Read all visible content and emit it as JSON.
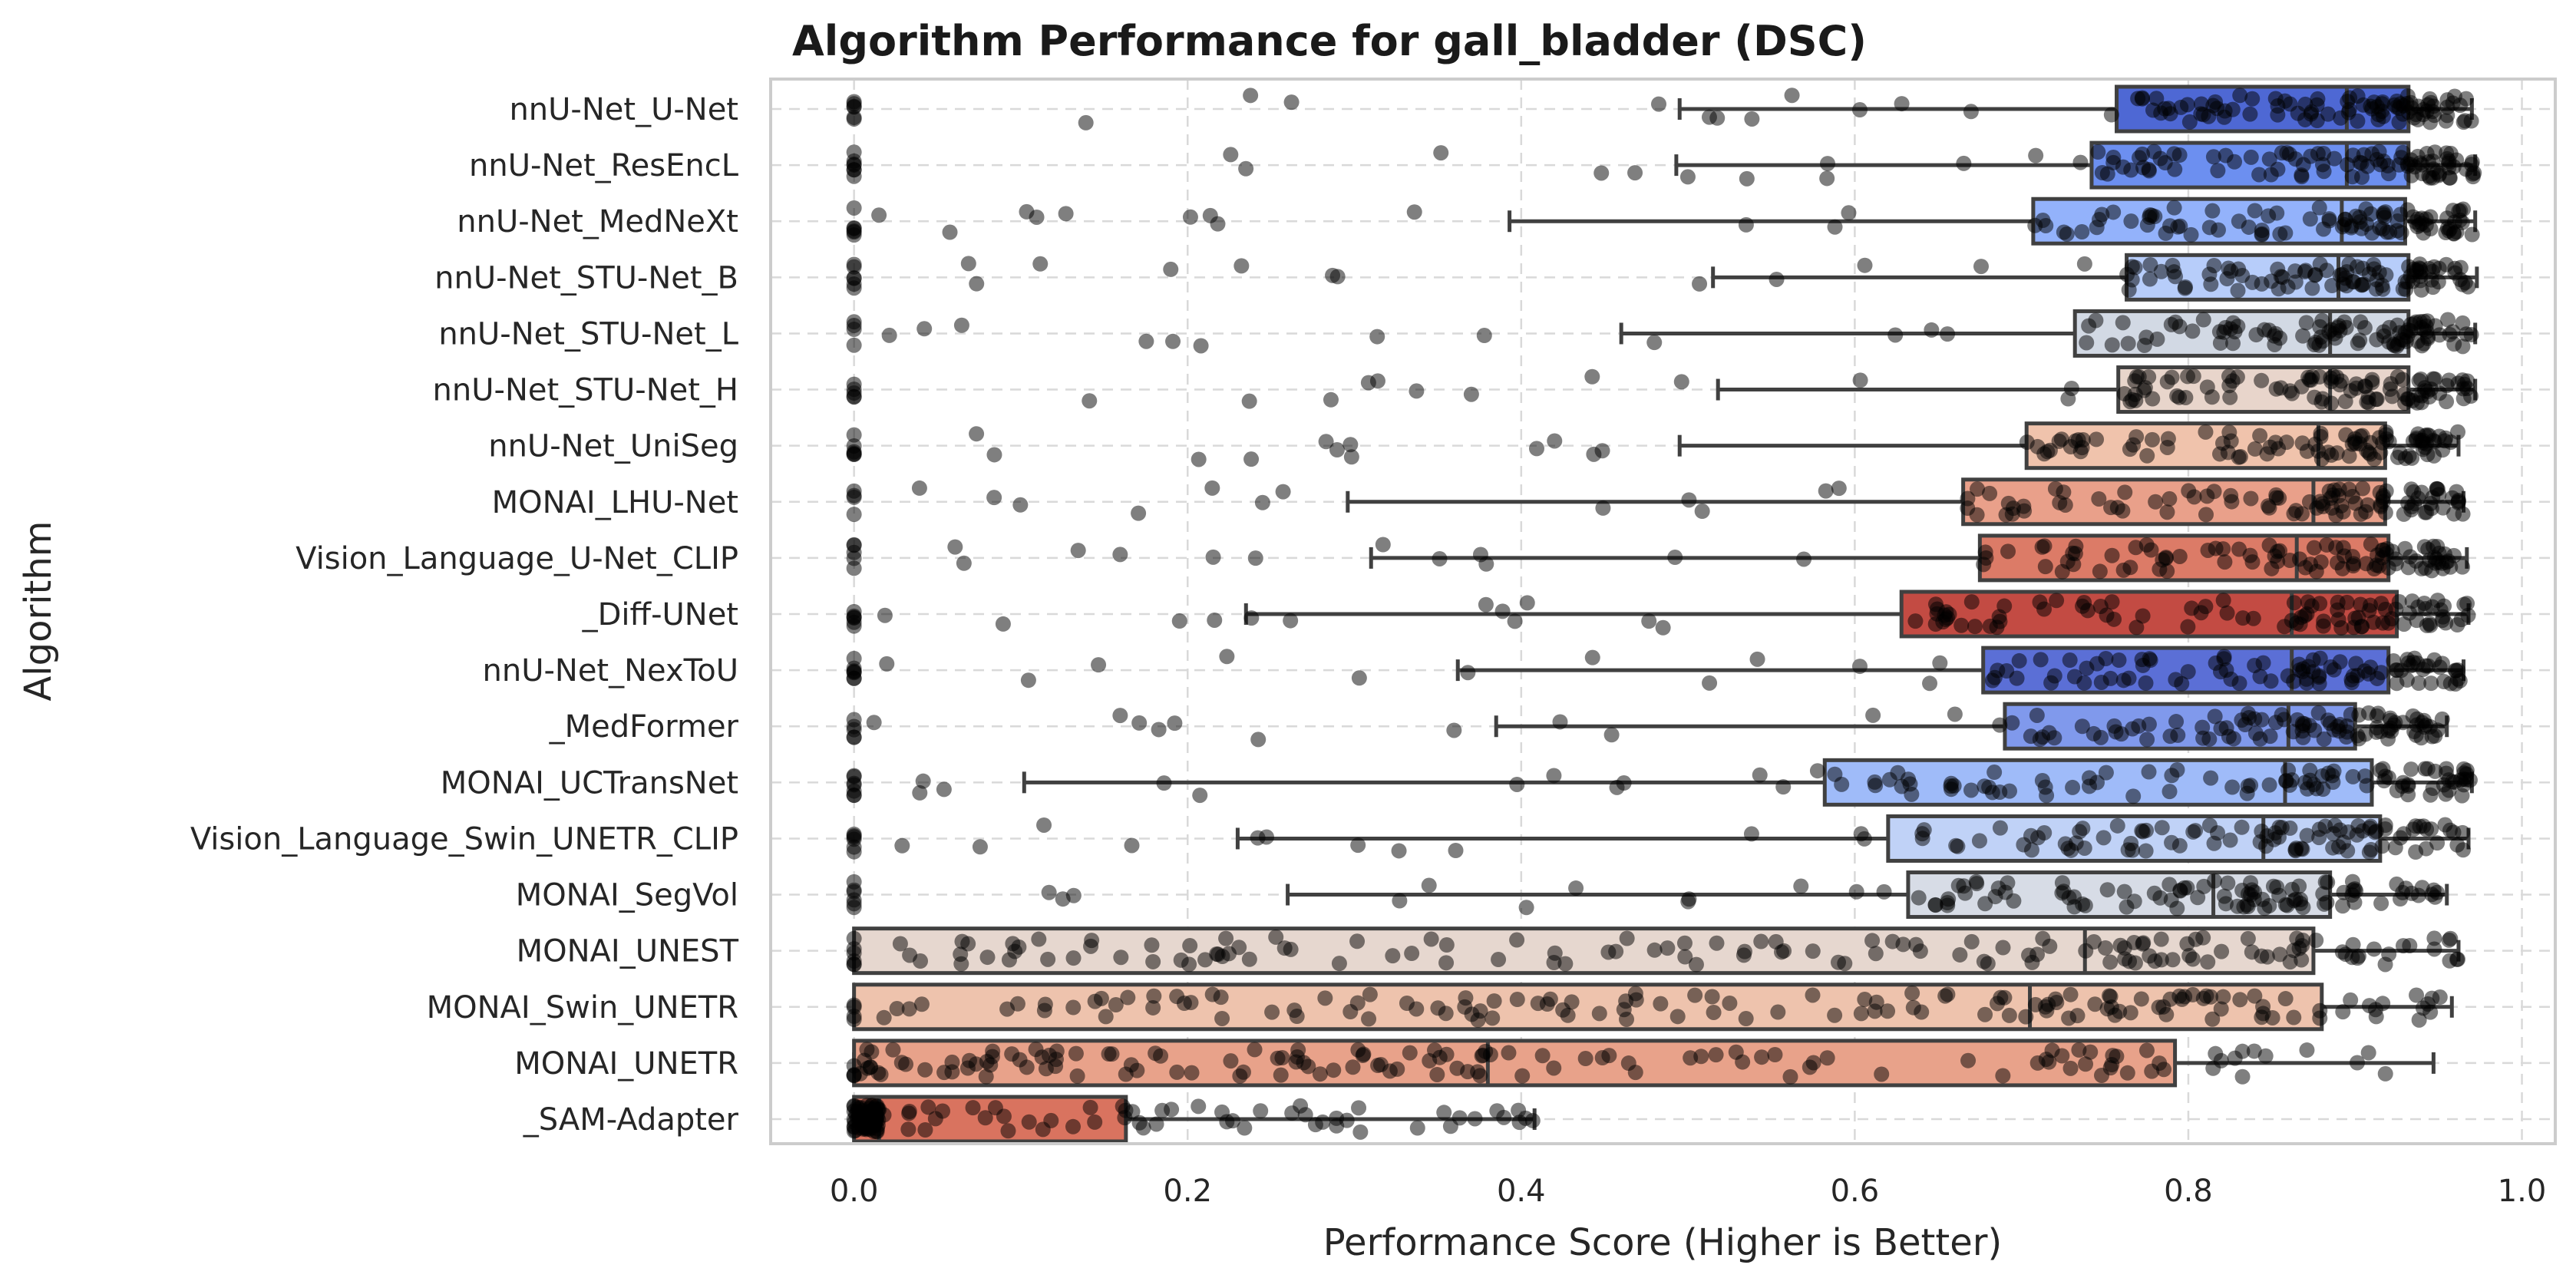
{
  "chart_data": {
    "type": "box",
    "title": "Algorithm Performance for gall_bladder (DSC)",
    "xlabel": "Performance Score (Higher is Better)",
    "ylabel": "Algorithm",
    "xlim": [
      -0.05,
      1.02
    ],
    "xticks": [
      "0.0",
      "0.2",
      "0.4",
      "0.6",
      "0.8",
      "1.0"
    ],
    "xtick_values": [
      0.0,
      0.2,
      0.4,
      0.6,
      0.8,
      1.0
    ],
    "grid": true,
    "orientation": "horizontal",
    "palette": "coolwarm",
    "categories": [
      "nnU-Net_U-Net",
      "nnU-Net_ResEncL",
      "nnU-Net_MedNeXt",
      "nnU-Net_STU-Net_B",
      "nnU-Net_STU-Net_L",
      "nnU-Net_STU-Net_H",
      "nnU-Net_UniSeg",
      "MONAI_LHU-Net",
      "Vision_Language_U-Net_CLIP",
      "_Diff-UNet",
      "nnU-Net_NexToU",
      "_MedFormer",
      "MONAI_UCTransNet",
      "Vision_Language_Swin_UNETR_CLIP",
      "MONAI_SegVol",
      "MONAI_UNEST",
      "MONAI_Swin_UNETR",
      "MONAI_UNETR",
      "_SAM-Adapter"
    ],
    "boxes": [
      {
        "whislo": 0.495,
        "q1": 0.757,
        "med": 0.895,
        "q3": 0.932,
        "whishi": 0.97,
        "color": "#4e68d4"
      },
      {
        "whislo": 0.493,
        "q1": 0.742,
        "med": 0.895,
        "q3": 0.932,
        "whishi": 0.972,
        "color": "#6c8ff0"
      },
      {
        "whislo": 0.393,
        "q1": 0.707,
        "med": 0.892,
        "q3": 0.93,
        "whishi": 0.972,
        "color": "#93b2fb"
      },
      {
        "whislo": 0.515,
        "q1": 0.763,
        "med": 0.89,
        "q3": 0.932,
        "whishi": 0.973,
        "color": "#b7cdfa"
      },
      {
        "whislo": 0.46,
        "q1": 0.732,
        "med": 0.885,
        "q3": 0.932,
        "whishi": 0.972,
        "color": "#d2d9e4"
      },
      {
        "whislo": 0.518,
        "q1": 0.758,
        "med": 0.885,
        "q3": 0.932,
        "whishi": 0.972,
        "color": "#e8d5cb"
      },
      {
        "whislo": 0.495,
        "q1": 0.703,
        "med": 0.878,
        "q3": 0.918,
        "whishi": 0.962,
        "color": "#f0c3ac"
      },
      {
        "whislo": 0.296,
        "q1": 0.665,
        "med": 0.875,
        "q3": 0.918,
        "whishi": 0.965,
        "color": "#e9a08a"
      },
      {
        "whislo": 0.31,
        "q1": 0.675,
        "med": 0.865,
        "q3": 0.92,
        "whishi": 0.967,
        "color": "#dc7b67"
      },
      {
        "whislo": 0.235,
        "q1": 0.628,
        "med": 0.862,
        "q3": 0.925,
        "whishi": 0.968,
        "color": "#c34b43"
      },
      {
        "whislo": 0.362,
        "q1": 0.677,
        "med": 0.862,
        "q3": 0.92,
        "whishi": 0.965,
        "color": "#5b6fd6"
      },
      {
        "whislo": 0.385,
        "q1": 0.69,
        "med": 0.86,
        "q3": 0.9,
        "whishi": 0.955,
        "color": "#8099ec"
      },
      {
        "whislo": 0.102,
        "q1": 0.582,
        "med": 0.858,
        "q3": 0.91,
        "whishi": 0.97,
        "color": "#9fbbf9"
      },
      {
        "whislo": 0.23,
        "q1": 0.62,
        "med": 0.845,
        "q3": 0.915,
        "whishi": 0.968,
        "color": "#c0d2f7"
      },
      {
        "whislo": 0.26,
        "q1": 0.632,
        "med": 0.815,
        "q3": 0.885,
        "whishi": 0.955,
        "color": "#d7dce6"
      },
      {
        "whislo": 0.0,
        "q1": 0.0,
        "med": 0.738,
        "q3": 0.875,
        "whishi": 0.962,
        "color": "#e6d7cf"
      },
      {
        "whislo": 0.0,
        "q1": 0.0,
        "med": 0.705,
        "q3": 0.88,
        "whishi": 0.958,
        "color": "#eec3ad"
      },
      {
        "whislo": 0.0,
        "q1": 0.0,
        "med": 0.38,
        "q3": 0.792,
        "whishi": 0.947,
        "color": "#e8a28a"
      },
      {
        "whislo": 0.0,
        "q1": 0.0,
        "med": 0.015,
        "q3": 0.163,
        "whishi": 0.408,
        "color": "#d9735f"
      }
    ],
    "points_note": "jittered black strip points",
    "colors": {
      "box_edge": "#404040",
      "points": "#000000",
      "grid": "#d9d9d9",
      "axes_edge": "#cccccc"
    }
  }
}
